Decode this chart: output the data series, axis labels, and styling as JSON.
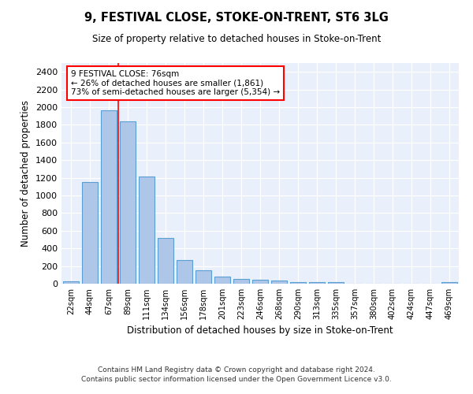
{
  "title": "9, FESTIVAL CLOSE, STOKE-ON-TRENT, ST6 3LG",
  "subtitle": "Size of property relative to detached houses in Stoke-on-Trent",
  "xlabel": "Distribution of detached houses by size in Stoke-on-Trent",
  "ylabel": "Number of detached properties",
  "categories": [
    "22sqm",
    "44sqm",
    "67sqm",
    "89sqm",
    "111sqm",
    "134sqm",
    "156sqm",
    "178sqm",
    "201sqm",
    "223sqm",
    "246sqm",
    "268sqm",
    "290sqm",
    "313sqm",
    "335sqm",
    "357sqm",
    "380sqm",
    "402sqm",
    "424sqm",
    "447sqm",
    "469sqm"
  ],
  "values": [
    30,
    1150,
    1960,
    1840,
    1215,
    515,
    265,
    155,
    80,
    50,
    45,
    40,
    20,
    22,
    15,
    0,
    0,
    0,
    0,
    0,
    18
  ],
  "bar_color": "#aec6e8",
  "bar_edge_color": "#5a9fd4",
  "annotation_text": "9 FESTIVAL CLOSE: 76sqm\n← 26% of detached houses are smaller (1,861)\n73% of semi-detached houses are larger (5,354) →",
  "annotation_box_color": "white",
  "annotation_box_edge_color": "red",
  "ylim": [
    0,
    2500
  ],
  "yticks": [
    0,
    200,
    400,
    600,
    800,
    1000,
    1200,
    1400,
    1600,
    1800,
    2000,
    2200,
    2400
  ],
  "footer_line1": "Contains HM Land Registry data © Crown copyright and database right 2024.",
  "footer_line2": "Contains public sector information licensed under the Open Government Licence v3.0.",
  "plot_bg_color": "#eaf0fb"
}
